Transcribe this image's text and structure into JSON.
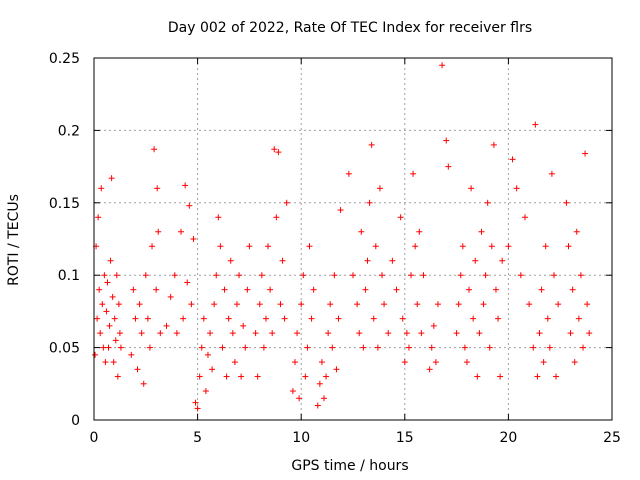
{
  "chart_data": {
    "type": "scatter",
    "title": "Day 002 of 2022, Rate Of TEC Index for receiver flrs",
    "xlabel": "GPS time / hours",
    "ylabel": "ROTI / TECUs",
    "xlim": [
      0,
      25
    ],
    "ylim": [
      0,
      0.25
    ],
    "x_ticks": [
      "0",
      "5",
      "10",
      "15",
      "20",
      "25"
    ],
    "y_ticks": [
      "0",
      "0.05",
      "0.1",
      "0.15",
      "0.2",
      "0.25"
    ],
    "grid": true,
    "marker": "+",
    "marker_color": "#ff0000",
    "series": [
      {
        "points": [
          [
            0.05,
            0.045
          ],
          [
            0.1,
            0.12
          ],
          [
            0.15,
            0.07
          ],
          [
            0.2,
            0.14
          ],
          [
            0.25,
            0.09
          ],
          [
            0.3,
            0.06
          ],
          [
            0.35,
            0.16
          ],
          [
            0.4,
            0.08
          ],
          [
            0.45,
            0.05
          ],
          [
            0.5,
            0.1
          ],
          [
            0.55,
            0.04
          ],
          [
            0.6,
            0.075
          ],
          [
            0.65,
            0.095
          ],
          [
            0.7,
            0.05
          ],
          [
            0.75,
            0.065
          ],
          [
            0.8,
            0.11
          ],
          [
            0.85,
            0.167
          ],
          [
            0.9,
            0.085
          ],
          [
            0.95,
            0.04
          ],
          [
            1.0,
            0.07
          ],
          [
            1.05,
            0.055
          ],
          [
            1.1,
            0.1
          ],
          [
            1.15,
            0.03
          ],
          [
            1.2,
            0.08
          ],
          [
            1.25,
            0.06
          ],
          [
            1.3,
            0.05
          ],
          [
            1.8,
            0.045
          ],
          [
            1.9,
            0.09
          ],
          [
            2.0,
            0.07
          ],
          [
            2.1,
            0.035
          ],
          [
            2.2,
            0.08
          ],
          [
            2.3,
            0.06
          ],
          [
            2.4,
            0.025
          ],
          [
            2.5,
            0.1
          ],
          [
            2.6,
            0.07
          ],
          [
            2.7,
            0.05
          ],
          [
            2.8,
            0.12
          ],
          [
            2.9,
            0.187
          ],
          [
            3.0,
            0.09
          ],
          [
            3.05,
            0.16
          ],
          [
            3.1,
            0.13
          ],
          [
            3.2,
            0.06
          ],
          [
            3.5,
            0.065
          ],
          [
            3.7,
            0.085
          ],
          [
            3.9,
            0.1
          ],
          [
            4.0,
            0.06
          ],
          [
            4.2,
            0.13
          ],
          [
            4.3,
            0.07
          ],
          [
            4.4,
            0.162
          ],
          [
            4.5,
            0.095
          ],
          [
            4.6,
            0.148
          ],
          [
            4.7,
            0.08
          ],
          [
            4.8,
            0.125
          ],
          [
            4.9,
            0.012
          ],
          [
            5.0,
            0.008
          ],
          [
            5.1,
            0.03
          ],
          [
            5.2,
            0.05
          ],
          [
            5.3,
            0.07
          ],
          [
            5.4,
            0.02
          ],
          [
            5.5,
            0.045
          ],
          [
            5.6,
            0.06
          ],
          [
            5.7,
            0.035
          ],
          [
            5.8,
            0.08
          ],
          [
            5.9,
            0.1
          ],
          [
            6.0,
            0.14
          ],
          [
            6.1,
            0.12
          ],
          [
            6.2,
            0.05
          ],
          [
            6.3,
            0.09
          ],
          [
            6.4,
            0.03
          ],
          [
            6.5,
            0.07
          ],
          [
            6.6,
            0.11
          ],
          [
            6.7,
            0.06
          ],
          [
            6.8,
            0.04
          ],
          [
            6.9,
            0.08
          ],
          [
            7.0,
            0.1
          ],
          [
            7.1,
            0.03
          ],
          [
            7.2,
            0.065
          ],
          [
            7.3,
            0.05
          ],
          [
            7.4,
            0.09
          ],
          [
            7.5,
            0.12
          ],
          [
            7.8,
            0.06
          ],
          [
            7.9,
            0.03
          ],
          [
            8.0,
            0.08
          ],
          [
            8.1,
            0.1
          ],
          [
            8.2,
            0.05
          ],
          [
            8.3,
            0.07
          ],
          [
            8.4,
            0.12
          ],
          [
            8.5,
            0.09
          ],
          [
            8.6,
            0.06
          ],
          [
            8.7,
            0.187
          ],
          [
            8.8,
            0.14
          ],
          [
            8.9,
            0.185
          ],
          [
            9.0,
            0.08
          ],
          [
            9.1,
            0.11
          ],
          [
            9.2,
            0.07
          ],
          [
            9.3,
            0.15
          ],
          [
            9.6,
            0.02
          ],
          [
            9.7,
            0.04
          ],
          [
            9.8,
            0.06
          ],
          [
            9.9,
            0.015
          ],
          [
            10.0,
            0.08
          ],
          [
            10.1,
            0.1
          ],
          [
            10.2,
            0.03
          ],
          [
            10.3,
            0.05
          ],
          [
            10.4,
            0.12
          ],
          [
            10.5,
            0.07
          ],
          [
            10.6,
            0.09
          ],
          [
            10.8,
            0.01
          ],
          [
            10.9,
            0.025
          ],
          [
            11.0,
            0.04
          ],
          [
            11.1,
            0.015
          ],
          [
            11.2,
            0.03
          ],
          [
            11.3,
            0.06
          ],
          [
            11.4,
            0.08
          ],
          [
            11.5,
            0.05
          ],
          [
            11.6,
            0.1
          ],
          [
            11.7,
            0.035
          ],
          [
            11.8,
            0.07
          ],
          [
            11.9,
            0.145
          ],
          [
            12.3,
            0.17
          ],
          [
            12.5,
            0.1
          ],
          [
            12.7,
            0.08
          ],
          [
            12.8,
            0.06
          ],
          [
            12.9,
            0.13
          ],
          [
            13.0,
            0.05
          ],
          [
            13.1,
            0.09
          ],
          [
            13.2,
            0.11
          ],
          [
            13.3,
            0.15
          ],
          [
            13.4,
            0.19
          ],
          [
            13.5,
            0.07
          ],
          [
            13.6,
            0.12
          ],
          [
            13.7,
            0.05
          ],
          [
            13.8,
            0.16
          ],
          [
            13.9,
            0.1
          ],
          [
            14.0,
            0.08
          ],
          [
            14.2,
            0.06
          ],
          [
            14.4,
            0.11
          ],
          [
            14.6,
            0.09
          ],
          [
            14.8,
            0.14
          ],
          [
            14.9,
            0.07
          ],
          [
            15.0,
            0.04
          ],
          [
            15.1,
            0.06
          ],
          [
            15.2,
            0.05
          ],
          [
            15.3,
            0.1
          ],
          [
            15.4,
            0.17
          ],
          [
            15.5,
            0.12
          ],
          [
            15.6,
            0.08
          ],
          [
            15.7,
            0.13
          ],
          [
            15.8,
            0.06
          ],
          [
            15.9,
            0.1
          ],
          [
            16.2,
            0.035
          ],
          [
            16.3,
            0.05
          ],
          [
            16.4,
            0.065
          ],
          [
            16.5,
            0.04
          ],
          [
            16.6,
            0.08
          ],
          [
            16.8,
            0.245
          ],
          [
            17.0,
            0.193
          ],
          [
            17.1,
            0.175
          ],
          [
            17.5,
            0.06
          ],
          [
            17.6,
            0.08
          ],
          [
            17.7,
            0.1
          ],
          [
            17.8,
            0.12
          ],
          [
            17.9,
            0.05
          ],
          [
            18.0,
            0.04
          ],
          [
            18.1,
            0.09
          ],
          [
            18.2,
            0.16
          ],
          [
            18.3,
            0.07
          ],
          [
            18.4,
            0.11
          ],
          [
            18.5,
            0.03
          ],
          [
            18.6,
            0.06
          ],
          [
            18.7,
            0.13
          ],
          [
            18.8,
            0.08
          ],
          [
            18.9,
            0.1
          ],
          [
            19.0,
            0.15
          ],
          [
            19.1,
            0.05
          ],
          [
            19.2,
            0.12
          ],
          [
            19.3,
            0.19
          ],
          [
            19.4,
            0.09
          ],
          [
            19.5,
            0.07
          ],
          [
            19.6,
            0.03
          ],
          [
            19.7,
            0.11
          ],
          [
            20.0,
            0.12
          ],
          [
            20.2,
            0.18
          ],
          [
            20.4,
            0.16
          ],
          [
            20.6,
            0.1
          ],
          [
            20.8,
            0.14
          ],
          [
            21.0,
            0.08
          ],
          [
            21.2,
            0.05
          ],
          [
            21.3,
            0.204
          ],
          [
            21.4,
            0.03
          ],
          [
            21.5,
            0.06
          ],
          [
            21.6,
            0.09
          ],
          [
            21.7,
            0.04
          ],
          [
            21.8,
            0.12
          ],
          [
            21.9,
            0.07
          ],
          [
            22.0,
            0.05
          ],
          [
            22.1,
            0.17
          ],
          [
            22.2,
            0.1
          ],
          [
            22.3,
            0.03
          ],
          [
            22.4,
            0.08
          ],
          [
            22.8,
            0.15
          ],
          [
            22.9,
            0.12
          ],
          [
            23.0,
            0.06
          ],
          [
            23.1,
            0.09
          ],
          [
            23.2,
            0.04
          ],
          [
            23.3,
            0.13
          ],
          [
            23.4,
            0.07
          ],
          [
            23.5,
            0.1
          ],
          [
            23.6,
            0.05
          ],
          [
            23.7,
            0.184
          ],
          [
            23.8,
            0.08
          ],
          [
            23.9,
            0.06
          ]
        ]
      }
    ]
  }
}
